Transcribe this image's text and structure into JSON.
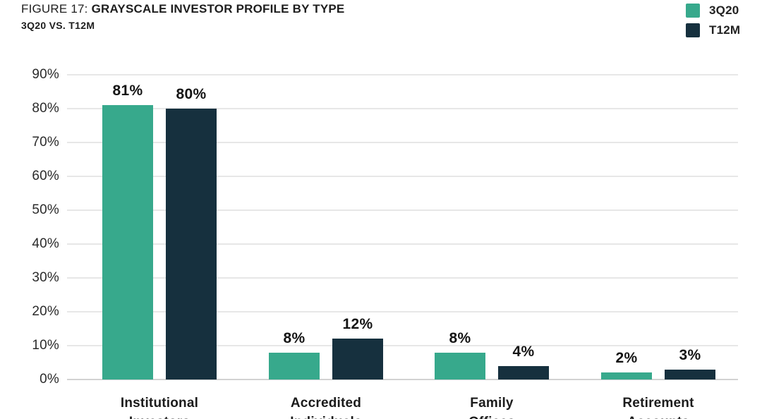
{
  "header": {
    "figure_label": "FIGURE 17:",
    "title": "GRAYSCALE INVESTOR PROFILE BY TYPE",
    "subtitle": "3Q20 VS. T12M"
  },
  "legend": {
    "items": [
      {
        "label": "3Q20",
        "color": "#37A98C"
      },
      {
        "label": "T12M",
        "color": "#16303E"
      }
    ]
  },
  "chart_data": {
    "type": "bar",
    "title": "FIGURE 17: GRAYSCALE INVESTOR PROFILE BY TYPE",
    "subtitle": "3Q20 VS. T12M",
    "categories": [
      {
        "line1": "Institutional",
        "line2": "Investors"
      },
      {
        "line1": "Accredited",
        "line2": "Individuals"
      },
      {
        "line1": "Family",
        "line2": "Offices"
      },
      {
        "line1": "Retirement",
        "line2": "Accounts"
      }
    ],
    "series": [
      {
        "name": "3Q20",
        "color": "#37A98C",
        "values": [
          81,
          8,
          8,
          2
        ],
        "labels": [
          "81%",
          "8%",
          "8%",
          "2%"
        ]
      },
      {
        "name": "T12M",
        "color": "#16303E",
        "values": [
          80,
          12,
          4,
          3
        ],
        "labels": [
          "80%",
          "12%",
          "4%",
          "3%"
        ]
      }
    ],
    "ylabel": "",
    "xlabel": "",
    "ylim": [
      0,
      90
    ],
    "yticks": [
      0,
      10,
      20,
      30,
      40,
      50,
      60,
      70,
      80,
      90
    ],
    "ytick_labels": [
      "0%",
      "10%",
      "20%",
      "30%",
      "40%",
      "50%",
      "60%",
      "70%",
      "80%",
      "90%"
    ],
    "grid": true,
    "legend_position": "top-right"
  }
}
